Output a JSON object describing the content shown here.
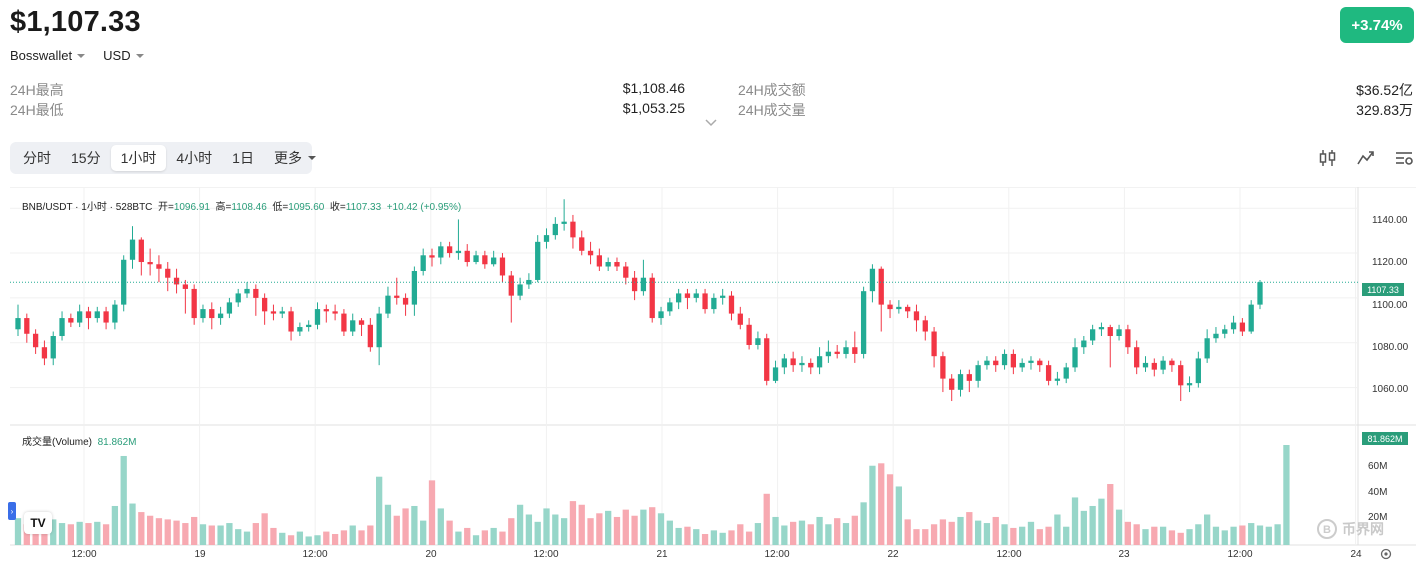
{
  "header": {
    "price": "$1,107.33",
    "change": "+3.74%",
    "wallet": "Bosswallet",
    "currency": "USD"
  },
  "stats": {
    "high_label": "24H最高",
    "high_value": "$1,108.46",
    "low_label": "24H最低",
    "low_value": "$1,053.25",
    "turnover_label": "24H成交额",
    "turnover_value": "$36.52亿",
    "volume_label": "24H成交量",
    "volume_value": "329.83万"
  },
  "tabs": [
    {
      "label": "分时"
    },
    {
      "label": "15分"
    },
    {
      "label": "1小时",
      "active": true
    },
    {
      "label": "4小时"
    },
    {
      "label": "1日"
    },
    {
      "label": "更多"
    }
  ],
  "chart_info": {
    "symbol": "BNB/USDT · 1小时 · 528BTC",
    "open_label": "开=",
    "open": "1096.91",
    "high_label": "高=",
    "high": "1108.46",
    "low_label": "低=",
    "low": "1095.60",
    "close_label": "收=",
    "close": "1107.33",
    "change": "+10.42 (+0.95%)",
    "volume_label": "成交量(Volume)",
    "volume_value": "81.862M",
    "price_tag": "1107.33",
    "volume_tag": "81.862M",
    "tv_logo": "TV",
    "watermark": "币界网"
  },
  "colors": {
    "up": "#22ab94",
    "down": "#f23645",
    "up_vol": "#97d6c9",
    "down_vol": "#f7a9b1",
    "badge": "#1fb980"
  },
  "icons": [
    "chevron-down-icon",
    "candlestick-icon",
    "indicator-icon",
    "settings-list-icon",
    "settings-gear-icon",
    "tradingview-logo-icon"
  ],
  "chart_data": {
    "type": "candlestick",
    "price_axis": {
      "ticks": [
        "1140.00",
        "1120.00",
        "1100.00",
        "1080.00",
        "1060.00"
      ],
      "range": [
        1050,
        1145
      ]
    },
    "volume_axis": {
      "ticks": [
        "60M",
        "40M",
        "20M"
      ],
      "range": [
        0,
        82
      ]
    },
    "time_axis": {
      "ticks": [
        "12:00",
        "19",
        "12:00",
        "20",
        "12:00",
        "21",
        "12:00",
        "22",
        "12:00",
        "23",
        "12:00",
        "24"
      ]
    },
    "candles": [
      [
        1086,
        1091,
        1083,
        1097
      ],
      [
        1091,
        1084,
        1080,
        1093
      ],
      [
        1084,
        1078,
        1075,
        1086
      ],
      [
        1078,
        1073,
        1070,
        1081
      ],
      [
        1073,
        1083,
        1070,
        1085
      ],
      [
        1083,
        1091,
        1081,
        1094
      ],
      [
        1091,
        1089,
        1087,
        1093
      ],
      [
        1089,
        1094,
        1087,
        1097
      ],
      [
        1094,
        1091,
        1086,
        1096
      ],
      [
        1091,
        1094,
        1089,
        1096
      ],
      [
        1094,
        1089,
        1086,
        1096
      ],
      [
        1089,
        1097,
        1086,
        1099
      ],
      [
        1097,
        1117,
        1094,
        1119
      ],
      [
        1117,
        1126,
        1113,
        1132
      ],
      [
        1126,
        1116,
        1110,
        1127
      ],
      [
        1116,
        1115,
        1110,
        1122
      ],
      [
        1115,
        1113,
        1107,
        1119
      ],
      [
        1113,
        1109,
        1103,
        1116
      ],
      [
        1109,
        1106,
        1102,
        1113
      ],
      [
        1106,
        1104,
        1093,
        1108
      ],
      [
        1104,
        1091,
        1088,
        1106
      ],
      [
        1091,
        1095,
        1089,
        1097
      ],
      [
        1095,
        1091,
        1086,
        1098
      ],
      [
        1091,
        1093,
        1088,
        1096
      ],
      [
        1093,
        1098,
        1091,
        1100
      ],
      [
        1098,
        1102,
        1096,
        1104
      ],
      [
        1102,
        1104,
        1100,
        1107
      ],
      [
        1104,
        1100,
        1092,
        1106
      ],
      [
        1100,
        1094,
        1088,
        1102
      ],
      [
        1094,
        1093,
        1090,
        1097
      ],
      [
        1093,
        1094,
        1091,
        1096
      ],
      [
        1094,
        1085,
        1081,
        1096
      ],
      [
        1085,
        1087,
        1083,
        1089
      ],
      [
        1087,
        1088,
        1085,
        1090
      ],
      [
        1088,
        1095,
        1086,
        1098
      ],
      [
        1095,
        1094,
        1089,
        1097
      ],
      [
        1094,
        1093,
        1090,
        1097
      ],
      [
        1093,
        1085,
        1083,
        1095
      ],
      [
        1085,
        1090,
        1083,
        1093
      ],
      [
        1090,
        1088,
        1083,
        1091
      ],
      [
        1088,
        1078,
        1076,
        1091
      ],
      [
        1078,
        1093,
        1070,
        1096
      ],
      [
        1093,
        1101,
        1091,
        1105
      ],
      [
        1101,
        1100,
        1097,
        1109
      ],
      [
        1100,
        1097,
        1092,
        1102
      ],
      [
        1097,
        1112,
        1092,
        1114
      ],
      [
        1112,
        1119,
        1110,
        1122
      ],
      [
        1119,
        1118,
        1114,
        1122
      ],
      [
        1118,
        1123,
        1115,
        1125
      ],
      [
        1123,
        1120,
        1118,
        1125
      ],
      [
        1120,
        1121,
        1117,
        1135
      ],
      [
        1121,
        1116,
        1114,
        1124
      ],
      [
        1116,
        1119,
        1115,
        1121
      ],
      [
        1119,
        1115,
        1113,
        1121
      ],
      [
        1115,
        1118,
        1114,
        1121
      ],
      [
        1118,
        1110,
        1107,
        1120
      ],
      [
        1110,
        1101,
        1089,
        1112
      ],
      [
        1101,
        1106,
        1099,
        1109
      ],
      [
        1106,
        1108,
        1104,
        1111
      ],
      [
        1108,
        1125,
        1107,
        1128
      ],
      [
        1125,
        1128,
        1122,
        1131
      ],
      [
        1128,
        1133,
        1126,
        1136
      ],
      [
        1133,
        1134,
        1130,
        1144
      ],
      [
        1134,
        1127,
        1122,
        1137
      ],
      [
        1127,
        1121,
        1119,
        1130
      ],
      [
        1121,
        1119,
        1115,
        1125
      ],
      [
        1119,
        1114,
        1112,
        1122
      ],
      [
        1114,
        1116,
        1112,
        1118
      ],
      [
        1116,
        1114,
        1112,
        1118
      ],
      [
        1114,
        1109,
        1106,
        1116
      ],
      [
        1109,
        1103,
        1099,
        1112
      ],
      [
        1103,
        1109,
        1101,
        1117
      ],
      [
        1109,
        1091,
        1089,
        1111
      ],
      [
        1091,
        1094,
        1088,
        1096
      ],
      [
        1094,
        1098,
        1092,
        1100
      ],
      [
        1098,
        1102,
        1095,
        1104
      ],
      [
        1102,
        1100,
        1095,
        1104
      ],
      [
        1100,
        1102,
        1098,
        1104
      ],
      [
        1102,
        1095,
        1093,
        1104
      ],
      [
        1095,
        1100,
        1093,
        1102
      ],
      [
        1100,
        1101,
        1097,
        1104
      ],
      [
        1101,
        1093,
        1090,
        1103
      ],
      [
        1093,
        1088,
        1086,
        1096
      ],
      [
        1088,
        1079,
        1077,
        1091
      ],
      [
        1079,
        1082,
        1077,
        1085
      ],
      [
        1082,
        1063,
        1061,
        1084
      ],
      [
        1063,
        1069,
        1062,
        1072
      ],
      [
        1069,
        1073,
        1066,
        1075
      ],
      [
        1073,
        1070,
        1067,
        1076
      ],
      [
        1070,
        1071,
        1067,
        1074
      ],
      [
        1071,
        1069,
        1066,
        1073
      ],
      [
        1069,
        1074,
        1066,
        1078
      ],
      [
        1074,
        1076,
        1071,
        1081
      ],
      [
        1076,
        1075,
        1073,
        1079
      ],
      [
        1075,
        1078,
        1073,
        1081
      ],
      [
        1078,
        1075,
        1071,
        1085
      ],
      [
        1075,
        1103,
        1073,
        1105
      ],
      [
        1103,
        1113,
        1098,
        1115
      ],
      [
        1113,
        1097,
        1085,
        1114
      ],
      [
        1097,
        1095,
        1091,
        1099
      ],
      [
        1095,
        1096,
        1093,
        1099
      ],
      [
        1096,
        1094,
        1091,
        1097
      ],
      [
        1094,
        1090,
        1085,
        1097
      ],
      [
        1090,
        1085,
        1081,
        1092
      ],
      [
        1085,
        1074,
        1069,
        1087
      ],
      [
        1074,
        1064,
        1058,
        1076
      ],
      [
        1064,
        1059,
        1054,
        1066
      ],
      [
        1059,
        1066,
        1056,
        1068
      ],
      [
        1066,
        1063,
        1058,
        1068
      ],
      [
        1063,
        1070,
        1060,
        1072
      ],
      [
        1070,
        1072,
        1068,
        1074
      ],
      [
        1072,
        1070,
        1067,
        1074
      ],
      [
        1070,
        1075,
        1068,
        1077
      ],
      [
        1075,
        1069,
        1066,
        1077
      ],
      [
        1069,
        1071,
        1067,
        1073
      ],
      [
        1071,
        1072,
        1068,
        1074
      ],
      [
        1072,
        1070,
        1067,
        1073
      ],
      [
        1070,
        1063,
        1061,
        1072
      ],
      [
        1063,
        1064,
        1061,
        1067
      ],
      [
        1064,
        1069,
        1062,
        1071
      ],
      [
        1069,
        1078,
        1067,
        1082
      ],
      [
        1078,
        1081,
        1075,
        1083
      ],
      [
        1081,
        1086,
        1079,
        1088
      ],
      [
        1086,
        1087,
        1083,
        1089
      ],
      [
        1087,
        1083,
        1069,
        1088
      ],
      [
        1083,
        1086,
        1081,
        1088
      ],
      [
        1086,
        1078,
        1075,
        1088
      ],
      [
        1078,
        1069,
        1066,
        1081
      ],
      [
        1069,
        1071,
        1067,
        1074
      ],
      [
        1071,
        1068,
        1065,
        1073
      ],
      [
        1068,
        1072,
        1066,
        1074
      ],
      [
        1072,
        1070,
        1067,
        1073
      ],
      [
        1070,
        1061,
        1054,
        1072
      ],
      [
        1061,
        1062,
        1058,
        1065
      ],
      [
        1062,
        1073,
        1060,
        1076
      ],
      [
        1073,
        1082,
        1071,
        1086
      ],
      [
        1082,
        1084,
        1080,
        1087
      ],
      [
        1084,
        1086,
        1082,
        1088
      ],
      [
        1086,
        1089,
        1084,
        1092
      ],
      [
        1089,
        1085,
        1083,
        1091
      ],
      [
        1085,
        1097,
        1084,
        1099
      ],
      [
        1097,
        1107,
        1095,
        1108
      ]
    ],
    "volumes": [
      22,
      17,
      13,
      21,
      21,
      18,
      17,
      19,
      18,
      19,
      17,
      32,
      73,
      34,
      27,
      24,
      22,
      21,
      20,
      18,
      23,
      17,
      16,
      16,
      18,
      13,
      11,
      18,
      26,
      14,
      10,
      8,
      11,
      7,
      8,
      11,
      9,
      12,
      16,
      12,
      16,
      56,
      33,
      24,
      30,
      32,
      20,
      53,
      30,
      20,
      11,
      14,
      8,
      12,
      14,
      11,
      22,
      33,
      25,
      19,
      30,
      25,
      22,
      36,
      33,
      22,
      26,
      28,
      23,
      29,
      24,
      29,
      31,
      26,
      20,
      14,
      15,
      13,
      9,
      12,
      10,
      12,
      17,
      11,
      18,
      42,
      23,
      16,
      19,
      20,
      17,
      23,
      17,
      22,
      18,
      24,
      35,
      65,
      67,
      58,
      48,
      21,
      13,
      13,
      17,
      21,
      19,
      23,
      27,
      20,
      18,
      23,
      17,
      14,
      15,
      19,
      13,
      15,
      25,
      15,
      39,
      28,
      32,
      38,
      50,
      29,
      19,
      17,
      13,
      15,
      15,
      12,
      10,
      13,
      17,
      25,
      15,
      12,
      15,
      16,
      18,
      16,
      15,
      17,
      82
    ]
  }
}
